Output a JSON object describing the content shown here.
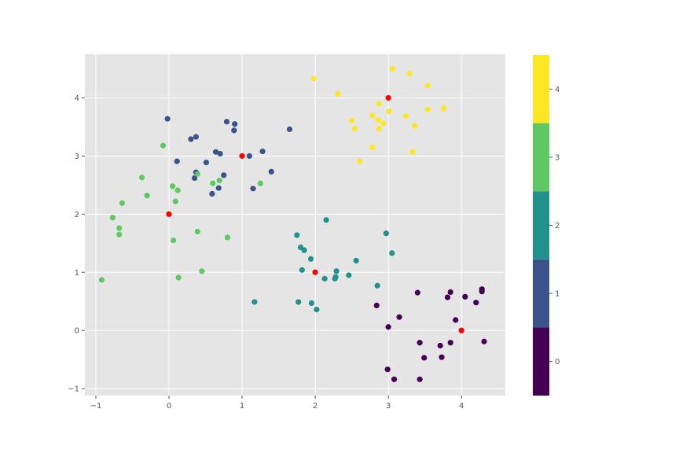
{
  "chart_data": {
    "type": "scatter",
    "title": "",
    "xlabel": "",
    "ylabel": "",
    "xlim": [
      -1.15,
      4.6
    ],
    "ylim": [
      -1.12,
      4.75
    ],
    "x_ticks": [
      -1,
      0,
      1,
      2,
      3,
      4
    ],
    "y_ticks": [
      -1,
      0,
      1,
      2,
      3,
      4
    ],
    "grid": true,
    "style": "ggplot",
    "colorbar": {
      "ticks": [
        0,
        1,
        2,
        3,
        4
      ],
      "range": [
        -0.5,
        4.5
      ],
      "colors": [
        "#440154",
        "#3b528b",
        "#21918c",
        "#5ec962",
        "#fde725"
      ]
    },
    "clusters": [
      {
        "label": 0,
        "color": "#440154",
        "points": [
          [
            3.4,
            0.65
          ],
          [
            3.85,
            0.66
          ],
          [
            3.81,
            0.57
          ],
          [
            4.05,
            0.58
          ],
          [
            4.2,
            0.48
          ],
          [
            4.28,
            0.71
          ],
          [
            4.28,
            0.67
          ],
          [
            2.84,
            0.43
          ],
          [
            3.15,
            0.23
          ],
          [
            3.0,
            0.06
          ],
          [
            3.92,
            0.18
          ],
          [
            3.43,
            -0.21
          ],
          [
            3.71,
            -0.26
          ],
          [
            3.85,
            -0.21
          ],
          [
            4.31,
            -0.19
          ],
          [
            3.49,
            -0.47
          ],
          [
            3.73,
            -0.46
          ],
          [
            2.99,
            -0.67
          ],
          [
            3.08,
            -0.84
          ],
          [
            3.43,
            -0.84
          ]
        ]
      },
      {
        "label": 1,
        "color": "#3b528b",
        "points": [
          [
            -0.02,
            3.64
          ],
          [
            0.37,
            3.33
          ],
          [
            0.3,
            3.29
          ],
          [
            0.79,
            3.59
          ],
          [
            0.9,
            3.55
          ],
          [
            0.89,
            3.44
          ],
          [
            1.65,
            3.46
          ],
          [
            0.64,
            3.07
          ],
          [
            0.7,
            3.04
          ],
          [
            1.1,
            3.0
          ],
          [
            1.28,
            3.08
          ],
          [
            0.11,
            2.91
          ],
          [
            0.51,
            2.89
          ],
          [
            0.37,
            2.72
          ],
          [
            0.35,
            2.62
          ],
          [
            0.75,
            2.67
          ],
          [
            1.4,
            2.73
          ],
          [
            0.68,
            2.45
          ],
          [
            0.59,
            2.35
          ],
          [
            1.15,
            2.44
          ]
        ]
      },
      {
        "label": 2,
        "color": "#21918c",
        "points": [
          [
            2.15,
            1.9
          ],
          [
            1.75,
            1.64
          ],
          [
            2.97,
            1.67
          ],
          [
            1.8,
            1.43
          ],
          [
            1.85,
            1.38
          ],
          [
            3.05,
            1.33
          ],
          [
            1.94,
            1.23
          ],
          [
            2.56,
            1.2
          ],
          [
            1.82,
            1.04
          ],
          [
            2.29,
            1.02
          ],
          [
            2.28,
            0.92
          ],
          [
            2.46,
            0.95
          ],
          [
            2.13,
            0.89
          ],
          [
            2.27,
            0.89
          ],
          [
            2.85,
            0.77
          ],
          [
            1.17,
            0.49
          ],
          [
            1.77,
            0.49
          ],
          [
            1.95,
            0.47
          ],
          [
            2.02,
            0.36
          ]
        ]
      },
      {
        "label": 3,
        "color": "#5ec962",
        "points": [
          [
            -0.08,
            3.18
          ],
          [
            -0.37,
            2.63
          ],
          [
            -0.3,
            2.32
          ],
          [
            0.05,
            2.48
          ],
          [
            0.12,
            2.41
          ],
          [
            0.09,
            2.22
          ],
          [
            0.6,
            2.53
          ],
          [
            0.69,
            2.58
          ],
          [
            0.39,
            2.69
          ],
          [
            1.25,
            2.53
          ],
          [
            -0.64,
            2.19
          ],
          [
            -0.77,
            1.94
          ],
          [
            -0.68,
            1.76
          ],
          [
            -0.68,
            1.65
          ],
          [
            0.39,
            1.7
          ],
          [
            0.8,
            1.6
          ],
          [
            0.06,
            1.55
          ],
          [
            0.45,
            1.02
          ],
          [
            0.13,
            0.91
          ],
          [
            -0.92,
            0.87
          ]
        ]
      },
      {
        "label": 4,
        "color": "#fde725",
        "points": [
          [
            3.06,
            4.5
          ],
          [
            3.29,
            4.42
          ],
          [
            1.98,
            4.33
          ],
          [
            3.54,
            4.21
          ],
          [
            2.31,
            4.07
          ],
          [
            2.87,
            3.9
          ],
          [
            3.54,
            3.8
          ],
          [
            3.76,
            3.82
          ],
          [
            3.01,
            3.77
          ],
          [
            3.24,
            3.69
          ],
          [
            2.78,
            3.7
          ],
          [
            2.5,
            3.61
          ],
          [
            2.86,
            3.62
          ],
          [
            2.93,
            3.56
          ],
          [
            3.36,
            3.52
          ],
          [
            2.54,
            3.47
          ],
          [
            2.87,
            3.47
          ],
          [
            2.78,
            3.15
          ],
          [
            3.33,
            3.07
          ],
          [
            2.61,
            2.91
          ]
        ]
      }
    ],
    "centers": {
      "color": "#ff0000",
      "points": [
        [
          0,
          2
        ],
        [
          1,
          3
        ],
        [
          2,
          1
        ],
        [
          3,
          4
        ],
        [
          4,
          0
        ]
      ]
    }
  }
}
